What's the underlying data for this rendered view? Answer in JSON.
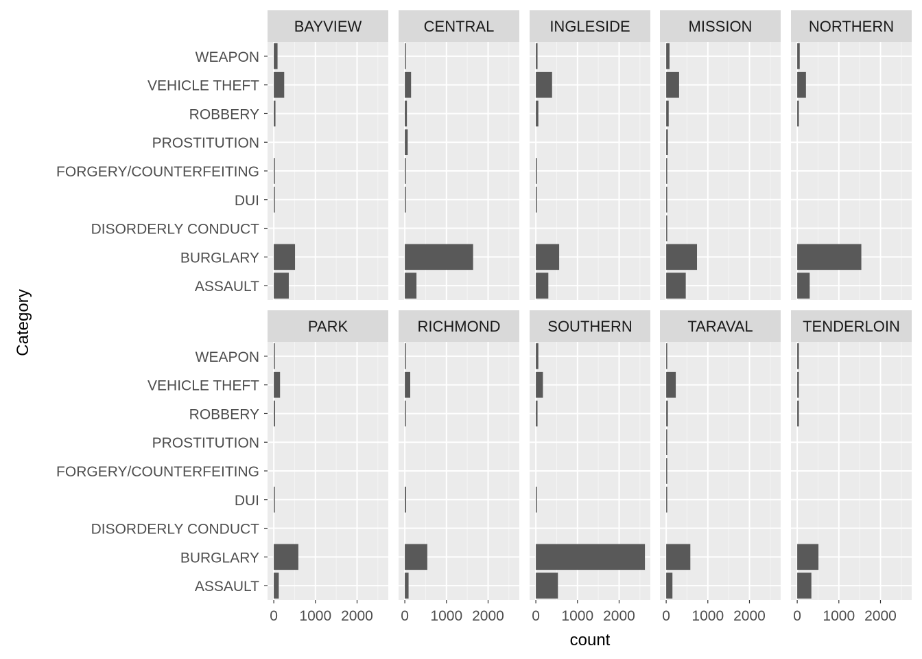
{
  "chart_data": {
    "type": "bar",
    "orientation": "horizontal",
    "facet_layout": "2 rows x 5 columns",
    "ylabel": "Category",
    "xlabel": "count",
    "xlim": [
      -150,
      2750
    ],
    "xticks": [
      0,
      1000,
      2000
    ],
    "xtick_labels": [
      "0",
      "1000",
      "2000"
    ],
    "grid": true,
    "bar_color": "#595959",
    "panel_background": "#ebebeb",
    "strip_background": "#d9d9d9",
    "categories": [
      "ASSAULT",
      "BURGLARY",
      "DISORDERLY CONDUCT",
      "DUI",
      "FORGERY/COUNTERFEITING",
      "PROSTITUTION",
      "ROBBERY",
      "VEHICLE THEFT",
      "WEAPON"
    ],
    "series": [
      {
        "name": "BAYVIEW",
        "values": [
          360,
          510,
          0,
          20,
          10,
          0,
          40,
          250,
          90
        ]
      },
      {
        "name": "CENTRAL",
        "values": [
          280,
          1640,
          0,
          15,
          15,
          70,
          50,
          150,
          20
        ]
      },
      {
        "name": "INGLESIDE",
        "values": [
          300,
          560,
          0,
          5,
          5,
          0,
          60,
          390,
          40
        ]
      },
      {
        "name": "MISSION",
        "values": [
          470,
          740,
          15,
          15,
          15,
          40,
          60,
          310,
          80
        ]
      },
      {
        "name": "NORTHERN",
        "values": [
          300,
          1540,
          0,
          0,
          0,
          0,
          40,
          210,
          60
        ]
      },
      {
        "name": "PARK",
        "values": [
          120,
          590,
          0,
          10,
          0,
          0,
          30,
          150,
          20
        ]
      },
      {
        "name": "RICHMOND",
        "values": [
          90,
          540,
          0,
          30,
          0,
          0,
          20,
          130,
          20
        ]
      },
      {
        "name": "SOUTHERN",
        "values": [
          530,
          2620,
          0,
          20,
          0,
          0,
          40,
          170,
          60
        ]
      },
      {
        "name": "TARAVAL",
        "values": [
          150,
          580,
          0,
          15,
          15,
          15,
          40,
          230,
          15
        ]
      },
      {
        "name": "TENDERLOIN",
        "values": [
          340,
          510,
          0,
          0,
          0,
          0,
          40,
          40,
          40
        ]
      }
    ]
  }
}
